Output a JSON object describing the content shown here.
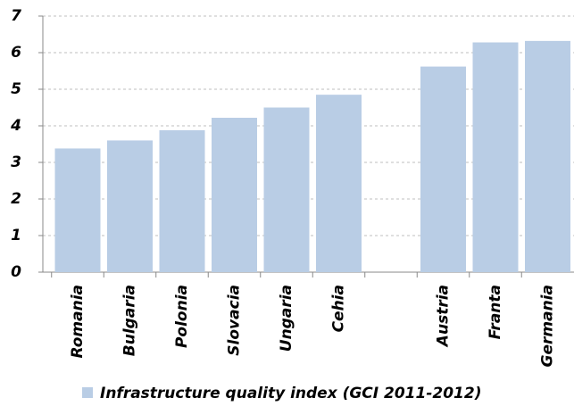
{
  "chart_data": {
    "type": "bar",
    "categories": [
      "Romania",
      "Bulgaria",
      "Polonia",
      "Slovacia",
      "Ungaria",
      "Cehia",
      null,
      "Austria",
      "Franta",
      "Germania"
    ],
    "series": [
      {
        "name": "Infrastructure quality index (GCI 2011-2012)",
        "color": "#b9cde5",
        "values": [
          3.38,
          3.6,
          3.88,
          4.22,
          4.5,
          4.85,
          null,
          5.62,
          6.28,
          6.32
        ]
      }
    ],
    "ylim": [
      0,
      7
    ],
    "yticks": [
      0,
      1,
      2,
      3,
      4,
      5,
      6,
      7
    ],
    "grid": true,
    "legend": "bottom"
  }
}
